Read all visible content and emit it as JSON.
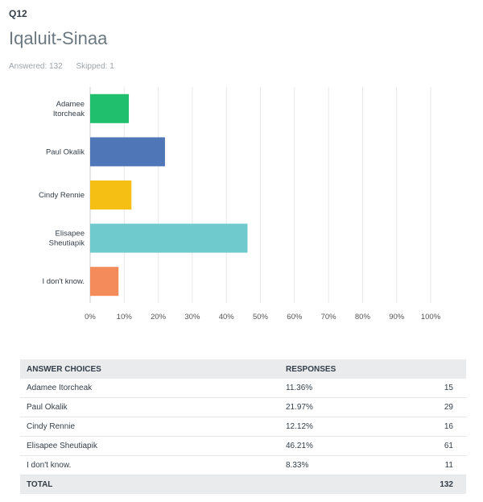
{
  "question": {
    "number": "Q12",
    "title": "Iqaluit-Sinaa",
    "answered": "Answered: 132",
    "skipped": "Skipped: 1"
  },
  "chart_data": {
    "type": "bar",
    "orientation": "horizontal",
    "categories": [
      "Adamee Itorcheak",
      "Paul Okalik",
      "Cindy Rennie",
      "Elisapee Sheutiapik",
      "I don't know."
    ],
    "category_lines": [
      [
        "Adamee",
        "Itorcheak"
      ],
      [
        "Paul Okalik"
      ],
      [
        "Cindy Rennie"
      ],
      [
        "Elisapee",
        "Sheutiapik"
      ],
      [
        "I don't know."
      ]
    ],
    "values": [
      11.36,
      21.97,
      12.12,
      46.21,
      8.33
    ],
    "colors": [
      "#1fbf6e",
      "#4f76b6",
      "#f5c013",
      "#6ecacd",
      "#f48b5b"
    ],
    "xlim": [
      0,
      100
    ],
    "ticks": [
      "0%",
      "10%",
      "20%",
      "30%",
      "40%",
      "50%",
      "60%",
      "70%",
      "80%",
      "90%",
      "100%"
    ],
    "grid": true,
    "legend": "none"
  },
  "table": {
    "headers": [
      "ANSWER CHOICES",
      "RESPONSES"
    ],
    "rows": [
      {
        "choice": "Adamee Itorcheak",
        "percent": "11.36%",
        "count": "15"
      },
      {
        "choice": "Paul Okalik",
        "percent": "21.97%",
        "count": "29"
      },
      {
        "choice": "Cindy Rennie",
        "percent": "12.12%",
        "count": "16"
      },
      {
        "choice": "Elisapee Sheutiapik",
        "percent": "46.21%",
        "count": "61"
      },
      {
        "choice": "I don't know.",
        "percent": "8.33%",
        "count": "11"
      }
    ],
    "total_label": "TOTAL",
    "total": "132"
  }
}
